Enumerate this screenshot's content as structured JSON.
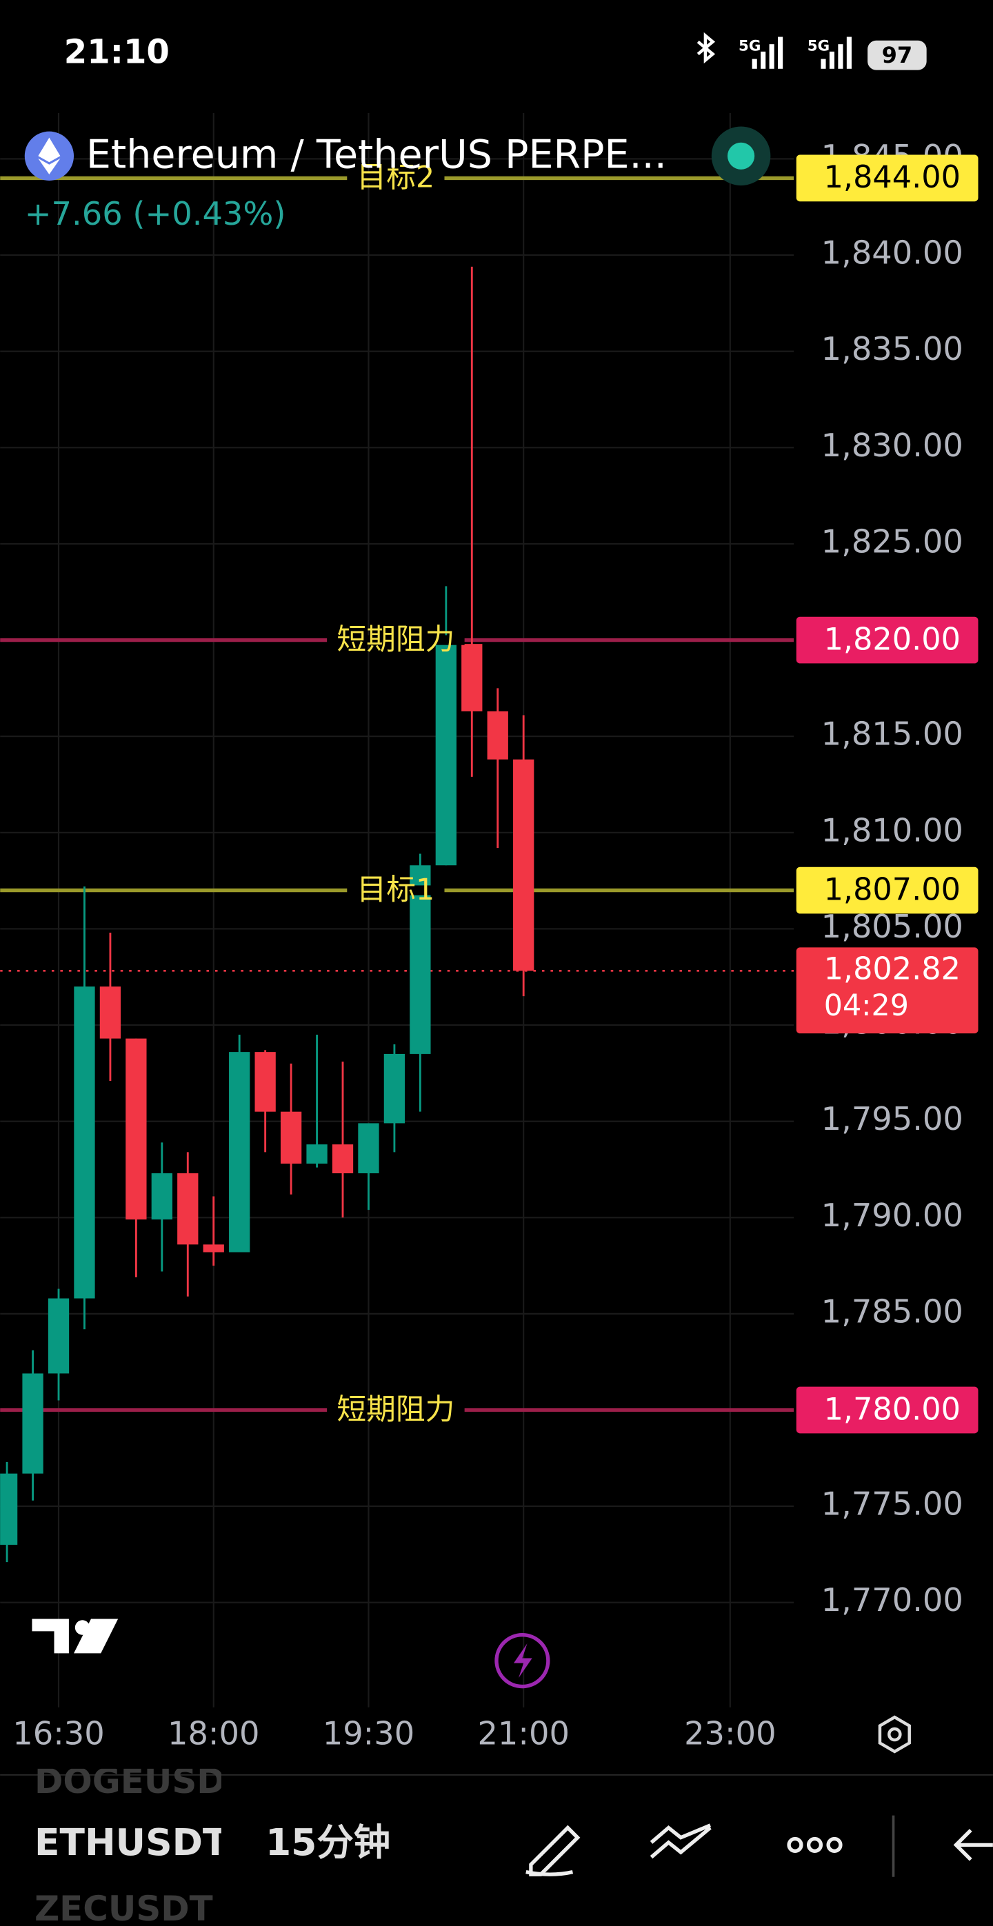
{
  "status_bar": {
    "time": "21:10",
    "network": [
      "5G",
      "5G"
    ],
    "battery": "97"
  },
  "header": {
    "symbol": "Ethereum / TetherUS PERPE...",
    "change": "+7.66 (+0.43%)"
  },
  "chart_data": {
    "type": "candlestick",
    "x": [
      "16:00",
      "16:15",
      "16:30",
      "16:45",
      "17:00",
      "17:15",
      "17:30",
      "17:45",
      "18:00",
      "18:15",
      "18:30",
      "18:45",
      "19:00",
      "19:15",
      "19:30",
      "19:45",
      "20:00",
      "20:15",
      "20:30",
      "20:45",
      "21:00"
    ],
    "open": [
      1773.0,
      1776.7,
      1781.9,
      1785.8,
      1802.0,
      1799.3,
      1789.9,
      1792.3,
      1788.6,
      1788.2,
      1798.6,
      1795.5,
      1792.8,
      1793.8,
      1792.3,
      1794.9,
      1798.5,
      1808.3,
      1819.8,
      1816.3,
      1813.8
    ],
    "high": [
      1777.3,
      1783.1,
      1786.3,
      1807.2,
      1804.8,
      1799.3,
      1793.9,
      1793.4,
      1791.1,
      1799.5,
      1798.7,
      1798.0,
      1799.5,
      1798.1,
      1794.9,
      1799.0,
      1808.9,
      1822.8,
      1839.4,
      1817.5,
      1816.1
    ],
    "low": [
      1772.1,
      1775.3,
      1780.5,
      1784.2,
      1797.1,
      1786.9,
      1787.2,
      1785.9,
      1787.5,
      1788.2,
      1793.4,
      1791.2,
      1792.6,
      1790.0,
      1790.4,
      1793.4,
      1795.5,
      1808.3,
      1812.9,
      1809.2,
      1801.5
    ],
    "close": [
      1776.7,
      1781.9,
      1785.8,
      1802.0,
      1799.3,
      1789.9,
      1792.3,
      1788.6,
      1788.2,
      1798.6,
      1795.5,
      1792.8,
      1793.8,
      1792.3,
      1794.9,
      1798.5,
      1808.3,
      1819.8,
      1816.3,
      1813.8,
      1802.82
    ],
    "up_color": "#089981",
    "down_color": "#f23645",
    "xlim": [
      "15:56",
      "23:37"
    ],
    "xticks": [
      "16:30",
      "18:00",
      "19:30",
      "21:00",
      "23:00"
    ],
    "ylim": [
      1765,
      1847
    ],
    "yticks": [
      {
        "value": 1770,
        "label": "1,770.00"
      },
      {
        "value": 1775,
        "label": "1,775.00"
      },
      {
        "value": 1780,
        "label": "1,780.00"
      },
      {
        "value": 1785,
        "label": "1,785.00"
      },
      {
        "value": 1790,
        "label": "1,790.00"
      },
      {
        "value": 1795,
        "label": "1,795.00"
      },
      {
        "value": 1800,
        "label": "1,800.00"
      },
      {
        "value": 1805,
        "label": "1,805.00"
      },
      {
        "value": 1810,
        "label": "1,810.00"
      },
      {
        "value": 1815,
        "label": "1,815.00"
      },
      {
        "value": 1820,
        "label": "1,820.00"
      },
      {
        "value": 1825,
        "label": "1,825.00"
      },
      {
        "value": 1830,
        "label": "1,830.00"
      },
      {
        "value": 1835,
        "label": "1,835.00"
      },
      {
        "value": 1840,
        "label": "1,840.00"
      },
      {
        "value": 1845,
        "label": "1,845.00"
      }
    ],
    "grid": true,
    "horizontal_lines": [
      {
        "name": "目标2",
        "value": 1844,
        "value_label": "1,844.00",
        "color": "#9b9a2b",
        "label_color": "#ffeb3b"
      },
      {
        "name": "短期阻力",
        "value": 1820,
        "value_label": "1,820.00",
        "color": "#9c1f4a",
        "label_color": "#e91e63"
      },
      {
        "name": "目标1",
        "value": 1807,
        "value_label": "1,807.00",
        "color": "#9b9a2b",
        "label_color": "#ffeb3b"
      },
      {
        "name": "短期阻力",
        "value": 1780,
        "value_label": "1,780.00",
        "color": "#9c1f4a",
        "label_color": "#e91e63"
      }
    ],
    "last_price": {
      "value": 1802.82,
      "label": "1,802.82",
      "countdown": "04:29",
      "color": "#f23645"
    }
  },
  "toolbar": {
    "previous": "DOGEUSDT",
    "symbol": "ETHUSDT",
    "interval": "15分钟",
    "next": "ZECUSDT"
  }
}
